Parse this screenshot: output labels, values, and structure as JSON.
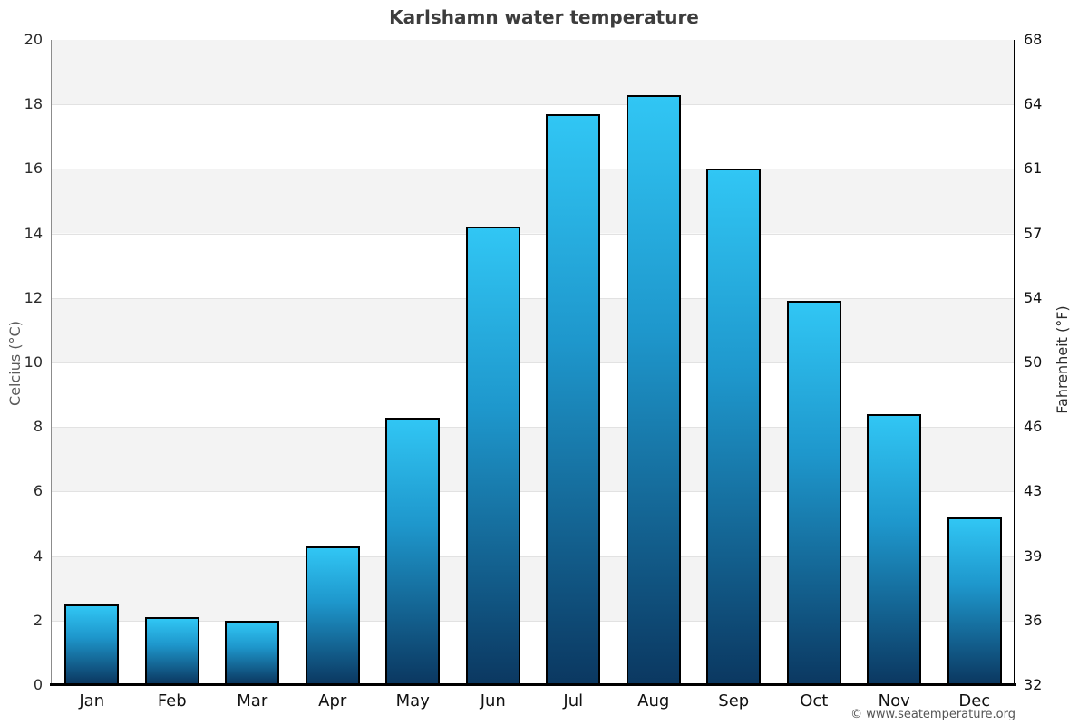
{
  "title": "Karlshamn water temperature",
  "footer": "© www.seatemperature.org",
  "chart_data": {
    "type": "bar",
    "title": "Karlshamn water temperature",
    "categories": [
      "Jan",
      "Feb",
      "Mar",
      "Apr",
      "May",
      "Jun",
      "Jul",
      "Aug",
      "Sep",
      "Oct",
      "Nov",
      "Dec"
    ],
    "values": [
      2.5,
      2.1,
      2.0,
      4.3,
      8.3,
      14.2,
      17.7,
      18.3,
      16.0,
      11.9,
      8.4,
      5.2
    ],
    "ylabel_left": "Celcius (°C)",
    "ylabel_right": "Fahrenheit (°F)",
    "ylim": [
      0,
      20
    ],
    "yticks_celsius": [
      0,
      2,
      4,
      6,
      8,
      10,
      12,
      14,
      16,
      18,
      20
    ],
    "yticks_fahrenheit": [
      32,
      36,
      39,
      43,
      46,
      50,
      54,
      57,
      61,
      64,
      68
    ],
    "xlabel": "",
    "legend": "none",
    "grid": "horizontal alternating bands every 2°C",
    "band_color": "#f3f3f3",
    "gridline_color": "#e2e2e2",
    "bar_color_top": "#31c6f4",
    "bar_color_mid": "#1e97cc",
    "bar_color_bottom": "#0b3861",
    "bar_border_color": "#000000"
  }
}
